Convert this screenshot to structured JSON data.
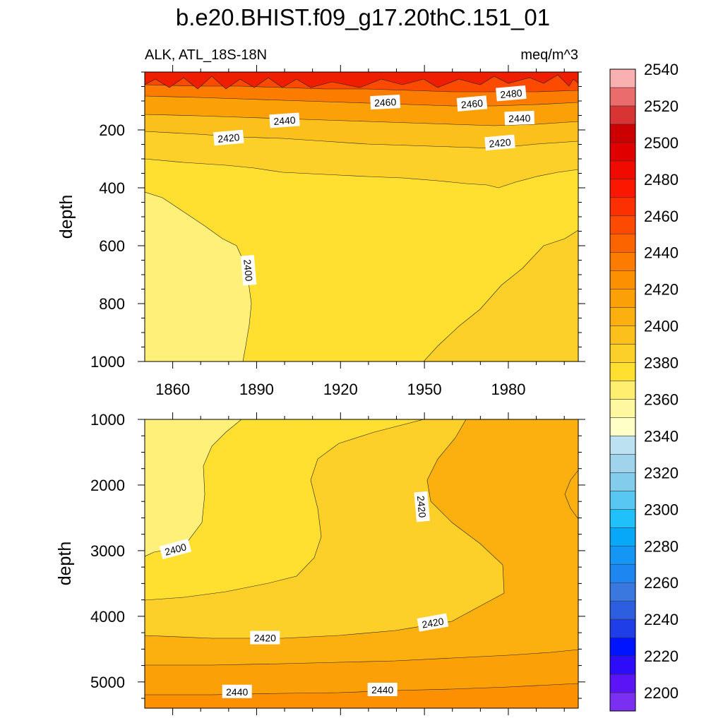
{
  "chart_data": {
    "type": "contour",
    "title": "b.e20.BHIST.f09_g17.20thC.151_01",
    "subtitle_left": "ALK, ATL_18S-18N",
    "subtitle_right": "meq/m^3",
    "x": {
      "label": "",
      "range": [
        1850,
        2005
      ],
      "ticks": [
        1860,
        1890,
        1920,
        1950,
        1980
      ],
      "tick_labels": [
        "1860",
        "1890",
        "1920",
        "1950",
        "1980"
      ]
    },
    "panels": [
      {
        "name": "upper-ocean",
        "ylabel": "depth",
        "ylim": [
          0,
          1000
        ],
        "y_inverted": true,
        "yticks": [
          200,
          400,
          600,
          800,
          1000
        ],
        "ytick_labels": [
          "200",
          "400",
          "600",
          "800",
          "1000"
        ],
        "contour_labels": [
          {
            "text": "2480",
            "x": 1981,
            "y": 75,
            "angle": -5
          },
          {
            "text": "2460",
            "x": 1936,
            "y": 105,
            "angle": -3
          },
          {
            "text": "2460",
            "x": 1967,
            "y": 110,
            "angle": -5
          },
          {
            "text": "2440",
            "x": 1900,
            "y": 168,
            "angle": -4
          },
          {
            "text": "2440",
            "x": 1984,
            "y": 160,
            "angle": -2
          },
          {
            "text": "2420",
            "x": 1880,
            "y": 228,
            "angle": -5
          },
          {
            "text": "2420",
            "x": 1977,
            "y": 245,
            "angle": -5
          },
          {
            "text": "2400",
            "x": 1887,
            "y": 685,
            "angle": 85
          }
        ]
      },
      {
        "name": "deep-ocean",
        "ylabel": "depth",
        "ylim": [
          1000,
          5400
        ],
        "y_inverted": true,
        "yticks": [
          1000,
          2000,
          3000,
          4000,
          5000
        ],
        "ytick_labels": [
          "1000",
          "2000",
          "3000",
          "4000",
          "5000"
        ],
        "contour_labels": [
          {
            "text": "2420",
            "x": 1949,
            "y": 2330,
            "angle": 85
          },
          {
            "text": "2400",
            "x": 1861,
            "y": 2980,
            "angle": -15
          },
          {
            "text": "2420",
            "x": 1953,
            "y": 4100,
            "angle": -10
          },
          {
            "text": "2420",
            "x": 1893,
            "y": 4330,
            "angle": 0
          },
          {
            "text": "2440",
            "x": 1883,
            "y": 5150,
            "angle": 0
          },
          {
            "text": "2440",
            "x": 1935,
            "y": 5120,
            "angle": 0
          }
        ]
      }
    ],
    "colorbar": {
      "levels": [
        2200,
        2220,
        2240,
        2260,
        2280,
        2300,
        2320,
        2340,
        2360,
        2380,
        2400,
        2420,
        2440,
        2460,
        2480,
        2500,
        2520,
        2540
      ],
      "labels": [
        "2200",
        "2220",
        "2240",
        "2260",
        "2280",
        "2300",
        "2320",
        "2340",
        "2360",
        "2380",
        "2400",
        "2420",
        "2440",
        "2460",
        "2480",
        "2500",
        "2520",
        "2540"
      ],
      "colors": [
        "#7b2ff0",
        "#5a14f5",
        "#2d0cfa",
        "#0014ff",
        "#1f3ee8",
        "#2e5ee0",
        "#3a78e0",
        "#1e86f0",
        "#1496f5",
        "#08a8f8",
        "#20c0fa",
        "#58c8f2",
        "#84ccec",
        "#a0d4ec",
        "#bce2f2",
        "#ffffc8",
        "#fff8a0",
        "#ffee70",
        "#ffe030",
        "#fcd028",
        "#fcc01c",
        "#fcb010",
        "#fca008",
        "#fc9000",
        "#fc7c00",
        "#fc6400",
        "#fc4a00",
        "#fc3000",
        "#fc1800",
        "#f00a00",
        "#e00000",
        "#cc0000",
        "#d83434",
        "#ea6c6c",
        "#f8b0b0"
      ]
    }
  }
}
